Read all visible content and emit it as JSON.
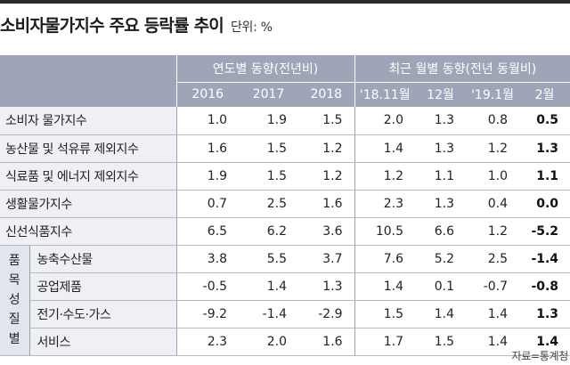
{
  "title": "소비자물가지수 주요 등락률 추이",
  "unit": "단위: %",
  "headers": {
    "annual_group": "연도별 동향(전년비)",
    "monthly_group": "최근 월별 동향(전년 동월비)",
    "columns": [
      "2016",
      "2017",
      "2018",
      "'18.11월",
      "12월",
      "'19.1월",
      "2월"
    ]
  },
  "side_label": [
    "품",
    "목",
    "성",
    "질",
    "별"
  ],
  "rows": [
    {
      "label": "소비자 물가지수",
      "values": [
        "1.0",
        "1.9",
        "1.5",
        "2.0",
        "1.3",
        "0.8",
        "0.5"
      ]
    },
    {
      "label": "농산물 및 석유류 제외지수",
      "values": [
        "1.6",
        "1.5",
        "1.2",
        "1.4",
        "1.3",
        "1.2",
        "1.3"
      ]
    },
    {
      "label": "식료품 및 에너지 제외지수",
      "values": [
        "1.9",
        "1.5",
        "1.2",
        "1.2",
        "1.1",
        "1.0",
        "1.1"
      ]
    },
    {
      "label": "생활물가지수",
      "values": [
        "0.7",
        "2.5",
        "1.6",
        "2.3",
        "1.3",
        "0.4",
        "0.0"
      ]
    },
    {
      "label": "신선식품지수",
      "values": [
        "6.5",
        "6.2",
        "3.6",
        "10.5",
        "6.6",
        "1.2",
        "-5.2"
      ]
    },
    {
      "label": "농축수산물",
      "values": [
        "3.8",
        "5.5",
        "3.7",
        "7.6",
        "5.2",
        "2.5",
        "-1.4"
      ]
    },
    {
      "label": "공업제품",
      "values": [
        "-0.5",
        "1.4",
        "1.3",
        "1.4",
        "0.1",
        "-0.7",
        "-0.8"
      ]
    },
    {
      "label": "전기·수도·가스",
      "values": [
        "-9.2",
        "-1.4",
        "-2.9",
        "1.5",
        "1.4",
        "1.4",
        "1.3"
      ]
    },
    {
      "label": "서비스",
      "values": [
        "2.3",
        "2.0",
        "1.6",
        "1.7",
        "1.5",
        "1.4",
        "1.4"
      ]
    }
  ],
  "source": "자료=통계청"
}
